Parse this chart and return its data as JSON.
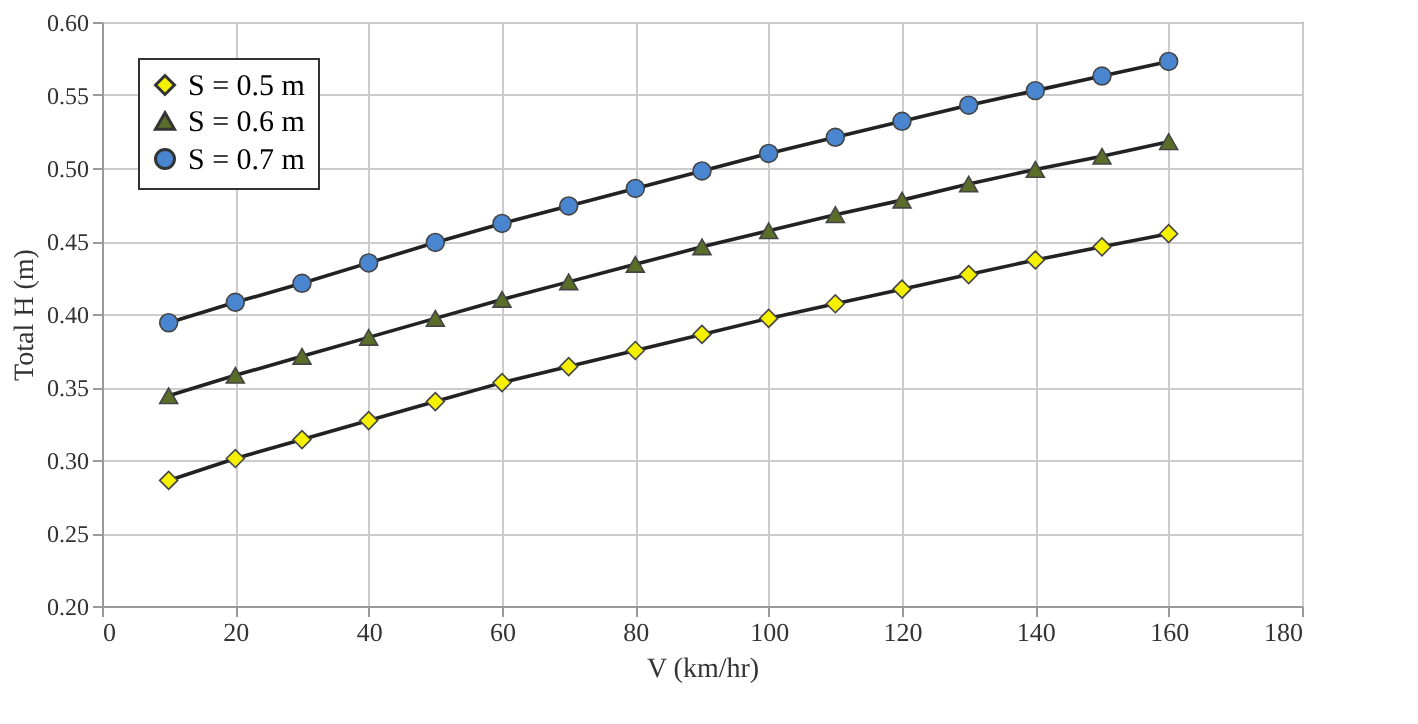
{
  "chart_data": {
    "type": "line",
    "xlabel": "V (km/hr)",
    "ylabel": "Total H (m)",
    "x": [
      10,
      20,
      30,
      40,
      50,
      60,
      70,
      80,
      90,
      100,
      110,
      120,
      130,
      140,
      150,
      160
    ],
    "series": [
      {
        "name": "S = 0.5 m",
        "color": "#f5f000",
        "marker": "diamond",
        "values": [
          0.286,
          0.301,
          0.314,
          0.327,
          0.34,
          0.353,
          0.364,
          0.375,
          0.386,
          0.397,
          0.407,
          0.417,
          0.427,
          0.437,
          0.446,
          0.455
        ]
      },
      {
        "name": "S = 0.6 m",
        "color": "#5a6e2a",
        "marker": "triangle",
        "values": [
          0.344,
          0.358,
          0.371,
          0.384,
          0.397,
          0.41,
          0.422,
          0.434,
          0.446,
          0.457,
          0.468,
          0.478,
          0.489,
          0.499,
          0.508,
          0.518
        ]
      },
      {
        "name": "S = 0.7 m",
        "color": "#4a86d0",
        "marker": "circle",
        "values": [
          0.394,
          0.408,
          0.421,
          0.435,
          0.449,
          0.462,
          0.474,
          0.486,
          0.498,
          0.51,
          0.521,
          0.532,
          0.543,
          0.553,
          0.563,
          0.573
        ]
      }
    ],
    "xlim": [
      0,
      180
    ],
    "xticks": [
      0,
      20,
      40,
      60,
      80,
      100,
      120,
      140,
      160,
      180
    ],
    "ylim": [
      0.2,
      0.6
    ],
    "yticks": [
      {
        "value": 0.2,
        "label": "0.20"
      },
      0.25,
      {
        "value": 0.3,
        "label": "0.30"
      },
      0.35,
      {
        "value": 0.4,
        "label": "0.40"
      },
      0.45,
      {
        "value": 0.5,
        "label": "0.50"
      },
      0.55,
      {
        "value": 0.6,
        "label": "0.60"
      }
    ],
    "grid": true,
    "legend": "top left",
    "line_style": "solid"
  }
}
